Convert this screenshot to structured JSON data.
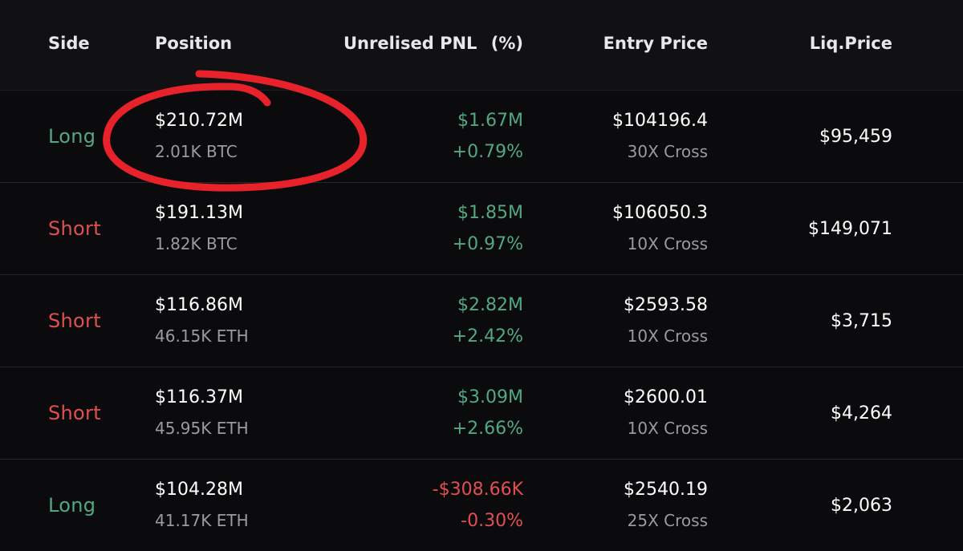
{
  "header": {
    "side": "Side",
    "position": "Position",
    "unrealised_pnl": "Unrelised PNL",
    "percent": "(%)",
    "entry_price": "Entry Price",
    "liq_price": "Liq.Price"
  },
  "rows": [
    {
      "side": "Long",
      "position_usd": "$210.72M",
      "position_size": "2.01K BTC",
      "pnl": "$1.67M",
      "pnl_pct": "+0.79%",
      "entry_price": "$104196.4",
      "leverage": "30X Cross",
      "liq_price": "$95,459"
    },
    {
      "side": "Short",
      "position_usd": "$191.13M",
      "position_size": "1.82K BTC",
      "pnl": "$1.85M",
      "pnl_pct": "+0.97%",
      "entry_price": "$106050.3",
      "leverage": "10X Cross",
      "liq_price": "$149,071"
    },
    {
      "side": "Short",
      "position_usd": "$116.86M",
      "position_size": "46.15K ETH",
      "pnl": "$2.82M",
      "pnl_pct": "+2.42%",
      "entry_price": "$2593.58",
      "leverage": "10X Cross",
      "liq_price": "$3,715"
    },
    {
      "side": "Short",
      "position_usd": "$116.37M",
      "position_size": "45.95K ETH",
      "pnl": "$3.09M",
      "pnl_pct": "+2.66%",
      "entry_price": "$2600.01",
      "leverage": "10X Cross",
      "liq_price": "$4,264"
    },
    {
      "side": "Long",
      "position_usd": "$104.28M",
      "position_size": "41.17K ETH",
      "pnl": "-$308.66K",
      "pnl_pct": "-0.30%",
      "entry_price": "$2540.19",
      "leverage": "25X Cross",
      "liq_price": "$2,063"
    }
  ],
  "colors": {
    "long": "#52a882",
    "short": "#e0504f",
    "profit": "#52a882",
    "loss": "#e0504f",
    "annotation": "#e8222a"
  }
}
